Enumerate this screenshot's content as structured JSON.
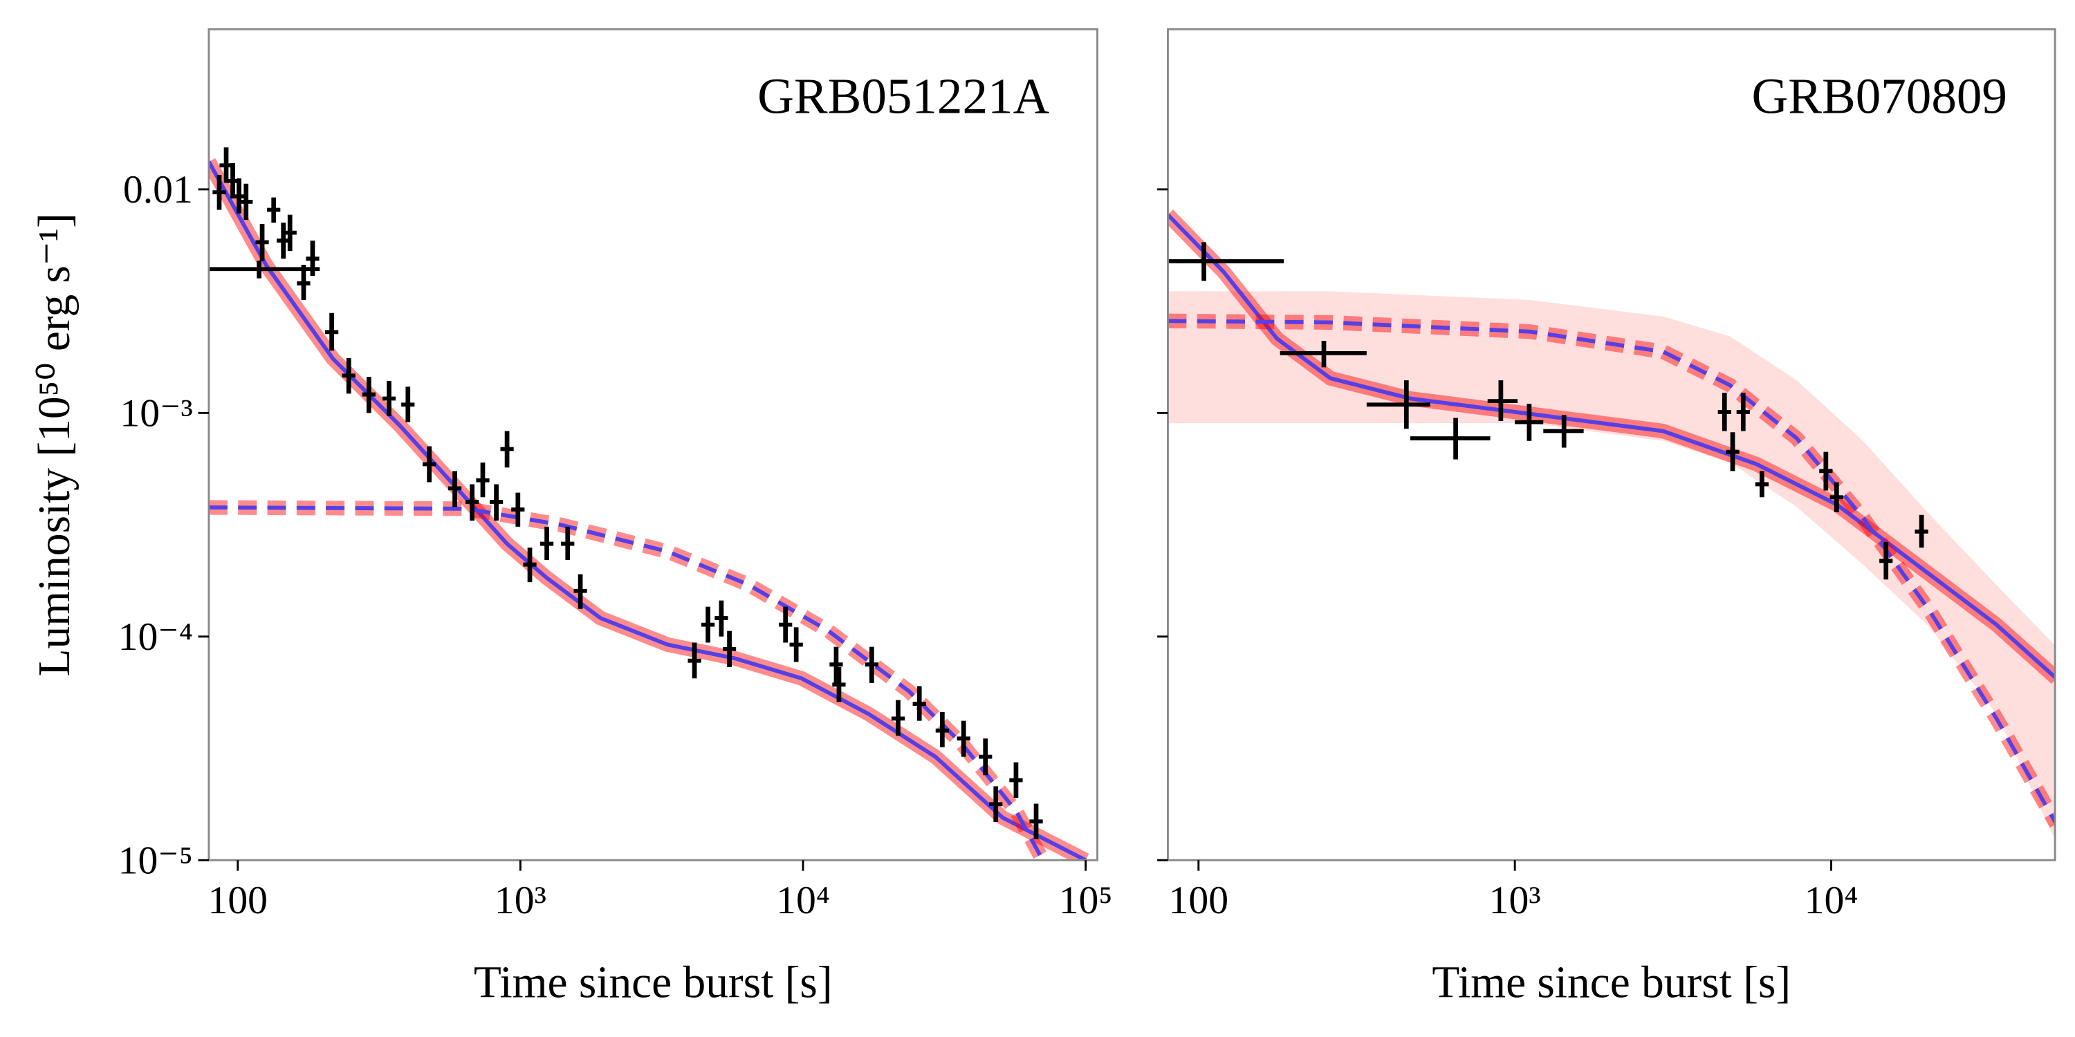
{
  "chart_data": [
    {
      "type": "scatter",
      "title": "GRB051221A",
      "xlabel": "Time since burst [s]",
      "ylabel": "Luminosity [10⁵⁰ erg s⁻¹]",
      "xscale": "log",
      "yscale": "log",
      "xlim": [
        79,
        110000
      ],
      "ylim": [
        1e-05,
        0.052
      ],
      "xticks": [
        100,
        {
          "value": 1000,
          "label": "10³"
        },
        {
          "value": 10000,
          "label": "10⁴"
        },
        {
          "value": 100000,
          "label": "10⁵"
        }
      ],
      "yticks": [
        {
          "value": 1e-05,
          "label": "10⁻⁵"
        },
        {
          "value": 0.0001,
          "label": "10⁻⁴"
        },
        {
          "value": 0.001,
          "label": "10⁻³"
        },
        0.01
      ],
      "show_ytick_labels": true,
      "color": "#000000",
      "x": [
        86,
        91,
        96,
        101,
        107,
        119,
        122,
        134,
        145,
        153,
        171,
        184,
        215,
        247,
        291,
        343,
        400,
        476,
        586,
        675,
        736,
        822,
        897,
        980,
        1080,
        1240,
        1470,
        1630,
        4130,
        4610,
        5140,
        5490,
        8670,
        9460,
        13100,
        13400,
        17500,
        21700,
        25800,
        31100,
        37000,
        44200,
        48100,
        56700,
        66800
      ],
      "values": [
        0.0097,
        0.0128,
        0.0109,
        0.0093,
        0.0088,
        0.0044,
        0.0058,
        0.0081,
        0.0059,
        0.0064,
        0.0038,
        0.0049,
        0.0023,
        0.00147,
        0.00121,
        0.00116,
        0.00109,
        0.00059,
        0.00046,
        0.0004,
        0.0005,
        0.0004,
        0.00069,
        0.00037,
        0.00021,
        0.00026,
        0.00026,
        0.00016,
        7.8e-05,
        0.000113,
        0.000121,
        8.8e-05,
        0.000113,
        9.2e-05,
        7.5e-05,
        6.1e-05,
        7.5e-05,
        4.3e-05,
        5e-05,
        3.8e-05,
        3.5e-05,
        2.9e-05,
        1.78e-05,
        2.28e-05,
        1.49e-05
      ],
      "y_lo": [
        0.0081,
        0.0107,
        0.0091,
        0.0078,
        0.0073,
        0.004,
        0.0048,
        0.0071,
        0.0049,
        0.0053,
        0.0032,
        0.0041,
        0.0019,
        0.00122,
        0.001,
        0.00097,
        0.00091,
        0.00049,
        0.00038,
        0.00033,
        0.00042,
        0.00033,
        0.00057,
        0.00031,
        0.000175,
        0.00022,
        0.00022,
        0.000133,
        6.5e-05,
        9.4e-05,
        0.0001,
        7.3e-05,
        9.4e-05,
        7.7e-05,
        6.2e-05,
        5.1e-05,
        6.2e-05,
        3.6e-05,
        4.2e-05,
        3.2e-05,
        2.9e-05,
        2.4e-05,
        1.48e-05,
        1.9e-05,
        1.24e-05
      ],
      "y_hi": [
        0.0116,
        0.0154,
        0.0131,
        0.0112,
        0.0106,
        0.0048,
        0.007,
        0.0092,
        0.0071,
        0.0077,
        0.0046,
        0.0059,
        0.0028,
        0.00176,
        0.00145,
        0.00139,
        0.00131,
        0.00071,
        0.00055,
        0.00048,
        0.0006,
        0.00048,
        0.00083,
        0.00044,
        0.00025,
        0.00031,
        0.00031,
        0.00019,
        9.4e-05,
        0.000136,
        0.000145,
        0.000106,
        0.000136,
        0.00011,
        9e-05,
        7.3e-05,
        9e-05,
        5.2e-05,
        6e-05,
        4.6e-05,
        4.2e-05,
        3.5e-05,
        2.14e-05,
        2.74e-05,
        1.79e-05
      ],
      "x_lo": [
        null,
        null,
        null,
        null,
        null,
        79,
        null,
        null,
        null,
        null,
        null,
        null,
        null,
        null,
        null,
        null,
        null,
        null,
        null,
        null,
        null,
        null,
        null,
        null,
        null,
        null,
        null,
        null,
        null,
        null,
        null,
        null,
        null,
        null,
        null,
        null,
        null,
        null,
        null,
        null,
        null,
        null,
        null,
        null,
        null
      ],
      "x_hi": [
        null,
        null,
        null,
        null,
        null,
        195,
        null,
        null,
        null,
        null,
        null,
        null,
        null,
        null,
        null,
        null,
        null,
        null,
        null,
        null,
        null,
        null,
        null,
        null,
        null,
        null,
        null,
        null,
        null,
        null,
        null,
        null,
        null,
        null,
        null,
        null,
        null,
        null,
        null,
        null,
        null,
        null,
        null,
        null,
        null
      ],
      "lines": [
        {
          "style": "solid",
          "color": "#5540e8",
          "band_color": "#ff0000",
          "x": [
            79,
            126,
            217,
            374,
            579,
            897,
            1240,
            1920,
            3320,
            5720,
            9890,
            17100,
            29400,
            50800,
            100000
          ],
          "values": [
            0.0133,
            0.00458,
            0.00175,
            0.00088,
            0.00048,
            0.00026,
            0.000183,
            0.000121,
            9.2e-05,
            8e-05,
            6.5e-05,
            4.5e-05,
            2.9e-05,
            1.55e-05,
            1e-05
          ]
        },
        {
          "style": "dashed",
          "color": "#5540e8",
          "band_color": "#ff0000",
          "x": [
            79,
            646,
            1390,
            3320,
            6390,
            12300,
            23700,
            36600,
            56700,
            70500
          ],
          "values": [
            0.000378,
            0.000373,
            0.000316,
            0.00024,
            0.000171,
            0.000106,
            5.7e-05,
            3.3e-05,
            1.66e-05,
            1e-05
          ]
        }
      ]
    },
    {
      "type": "scatter",
      "title": "GRB070809",
      "xlabel": "Time since burst [s]",
      "xscale": "log",
      "yscale": "log",
      "xlim": [
        80,
        51000
      ],
      "ylim": [
        1e-05,
        0.052
      ],
      "xticks": [
        100,
        {
          "value": 1000,
          "label": "10³"
        },
        {
          "value": 10000,
          "label": "10⁴"
        }
      ],
      "yticks": [
        1e-05,
        0.0001,
        0.001,
        0.01
      ],
      "show_ytick_labels": false,
      "color": "#000000",
      "x": [
        104,
        249,
        454,
        650,
        903,
        1110,
        1430,
        4600,
        4880,
        5270,
        6040,
        9620,
        10400,
        14900,
        19300
      ],
      "values": [
        0.00477,
        0.00185,
        0.00109,
        0.00077,
        0.00113,
        0.00091,
        0.00083,
        0.00101,
        0.00067,
        0.00101,
        0.00048,
        0.00055,
        0.00042,
        0.000218,
        0.000295
      ],
      "y_lo": [
        0.0039,
        0.0016,
        0.00085,
        0.00062,
        0.00092,
        0.00075,
        0.0007,
        0.00083,
        0.00055,
        0.00083,
        0.00042,
        0.00045,
        0.00036,
        0.00018,
        0.00025
      ],
      "y_hi": [
        0.0058,
        0.0021,
        0.0014,
        0.00095,
        0.0014,
        0.0011,
        0.00098,
        0.00123,
        0.00082,
        0.00123,
        0.00055,
        0.00067,
        0.00049,
        0.000265,
        0.00035
      ],
      "x_lo": [
        80,
        181,
        340,
        467,
        820,
        1000,
        1230,
        null,
        null,
        null,
        null,
        null,
        null,
        null,
        null
      ],
      "x_hi": [
        186,
        340,
        540,
        836,
        1020,
        1230,
        1650,
        null,
        null,
        null,
        null,
        null,
        null,
        null,
        null
      ],
      "band": {
        "color": "#ff0000",
        "x": [
          80,
          261,
          1120,
          2940,
          4790,
          7780,
          12600,
          20500,
          33300,
          51500
        ],
        "lo": [
          0.0009,
          0.0009,
          0.0009,
          0.00075,
          0.0006,
          0.00038,
          0.00021,
          0.00011,
          4.5e-05,
          1.2e-05
        ],
        "hi": [
          0.0035,
          0.0035,
          0.0032,
          0.0027,
          0.0022,
          0.0014,
          0.00075,
          0.00035,
          0.00017,
          9e-05
        ]
      },
      "lines": [
        {
          "style": "solid",
          "color": "#5540e8",
          "band_color": "#ff0000",
          "x": [
            80,
            120,
            177,
            261,
            467,
            1120,
            2940,
            5810,
            10400,
            18600,
            33300,
            51500
          ],
          "values": [
            0.0077,
            0.00428,
            0.00215,
            0.00143,
            0.00116,
            0.00099,
            0.00083,
            0.00059,
            0.00039,
            0.00021,
            0.000113,
            6.5e-05
          ]
        },
        {
          "style": "dashed",
          "color": "#5540e8",
          "band_color": "#ff0000",
          "x": [
            80,
            261,
            1120,
            2940,
            4790,
            7780,
            12600,
            20500,
            33300,
            51500
          ],
          "values": [
            0.00258,
            0.00254,
            0.00231,
            0.00188,
            0.00133,
            0.00077,
            0.00034,
            0.00013,
            4.3e-05,
            1.45e-05
          ]
        }
      ]
    }
  ]
}
